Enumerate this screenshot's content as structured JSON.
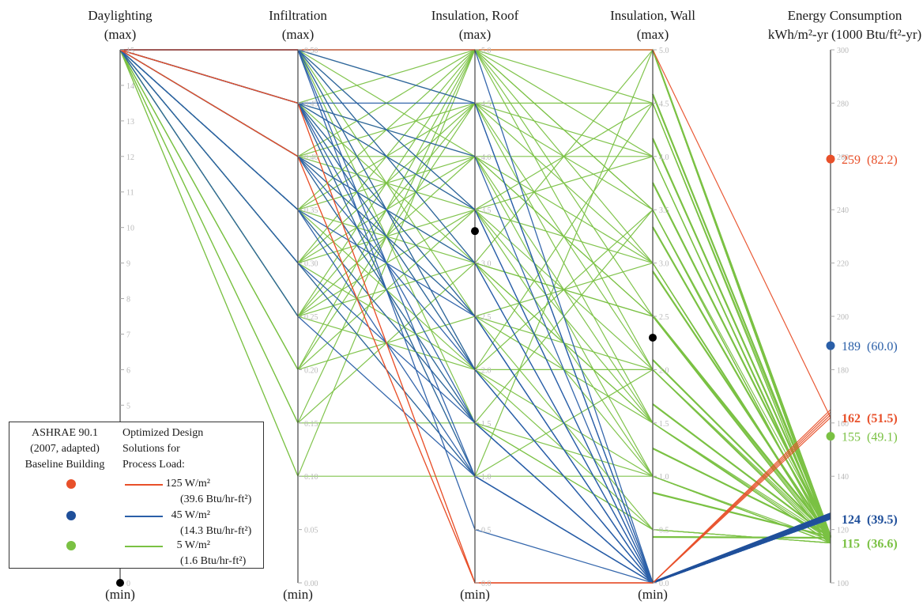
{
  "chart_data": {
    "type": "parallel-coordinates",
    "axes": [
      {
        "title": [
          "Daylighting",
          "(max)"
        ],
        "min_label": "(min)",
        "range": [
          0,
          15
        ],
        "ticks": [
          "0",
          "1",
          "2",
          "3",
          "4",
          "5",
          "6",
          "7",
          "8",
          "9",
          "10",
          "11",
          "12",
          "13",
          "14",
          "15"
        ]
      },
      {
        "title": [
          "Infiltration",
          "(max)"
        ],
        "min_label": "(min)",
        "range": [
          0,
          0.5
        ],
        "ticks": [
          "0.00",
          "0.05",
          "0.10",
          "0.15",
          "0.20",
          "0.25",
          "0.30",
          "0.35",
          "0.40",
          "0.45",
          "0.50"
        ]
      },
      {
        "title": [
          "Insulation, Roof",
          "(max)"
        ],
        "min_label": "(min)",
        "range": [
          0,
          5
        ],
        "ticks": [
          "0.0",
          "0.5",
          "1.0",
          "1.5",
          "2.0",
          "2.5",
          "3.0",
          "3.5",
          "4.0",
          "4.5",
          "5.0"
        ]
      },
      {
        "title": [
          "Insulation, Wall",
          "(max)"
        ],
        "min_label": "(min)",
        "range": [
          0,
          5
        ],
        "ticks": [
          "0.0",
          "0.5",
          "1.0",
          "1.5",
          "2.0",
          "2.5",
          "3.0",
          "3.5",
          "4.0",
          "4.5",
          "5.0"
        ]
      },
      {
        "title": [
          "Energy Consumption",
          "kWh/m²-yr (1000 Btu/ft²-yr)"
        ],
        "range": [
          100,
          300
        ],
        "ticks": [
          "100",
          "120",
          "140",
          "160",
          "180",
          "200",
          "220",
          "240",
          "260",
          "280",
          "300"
        ]
      }
    ],
    "baseline": {
      "values": [
        0,
        null,
        3.3,
        2.3,
        null
      ]
    },
    "energy_markers": [
      {
        "value": 259,
        "label": "259",
        "paren": "(82.2)",
        "color": "#e8502a",
        "dot": true,
        "bold": false
      },
      {
        "value": 189,
        "label": "189",
        "paren": "(60.0)",
        "color": "#2a5fa8",
        "dot": true,
        "bold": false
      },
      {
        "value": 162,
        "label": "162",
        "paren": "(51.5)",
        "color": "#e8502a",
        "dot": false,
        "bold": true
      },
      {
        "value": 155,
        "label": "155",
        "paren": "(49.1)",
        "color": "#7ac143",
        "dot": true,
        "bold": false
      },
      {
        "value": 124,
        "label": "124",
        "paren": "(39.5)",
        "color": "#1f4f9a",
        "dot": false,
        "bold": true
      },
      {
        "value": 115,
        "label": "115",
        "paren": "(36.6)",
        "color": "#7ac143",
        "dot": false,
        "bold": true
      }
    ],
    "series": [
      {
        "name": "125 W/m²",
        "color": "#e8502a",
        "polylines": [
          [
            15,
            0.5,
            5.0,
            5.0,
            162
          ],
          [
            15,
            0.45,
            0.0,
            0.0,
            162
          ],
          [
            15,
            0.4,
            0.0,
            0.0,
            163
          ],
          [
            15,
            0.4,
            0.0,
            0.0,
            164
          ],
          [
            15,
            0.45,
            0.0,
            0.0,
            165
          ]
        ]
      },
      {
        "name": "45 W/m²",
        "color": "#2a5fa8",
        "polylines": [
          [
            15,
            0.5,
            5.0,
            0.0,
            124
          ],
          [
            15,
            0.5,
            4.5,
            0.0,
            124
          ],
          [
            15,
            0.5,
            3.0,
            0.0,
            124
          ],
          [
            15,
            0.5,
            2.0,
            0.0,
            124
          ],
          [
            15,
            0.5,
            1.0,
            0.0,
            124
          ],
          [
            15,
            0.5,
            0.5,
            0.0,
            124
          ],
          [
            15,
            0.45,
            4.5,
            0.0,
            124
          ],
          [
            15,
            0.45,
            3.5,
            0.0,
            124
          ],
          [
            15,
            0.45,
            2.5,
            0.0,
            124
          ],
          [
            15,
            0.45,
            1.5,
            0.0,
            124
          ],
          [
            15,
            0.45,
            1.0,
            0.0,
            124
          ],
          [
            15,
            0.4,
            3.0,
            0.0,
            124
          ],
          [
            15,
            0.4,
            2.0,
            0.0,
            124
          ],
          [
            15,
            0.4,
            1.5,
            0.0,
            124
          ],
          [
            15,
            0.35,
            2.5,
            0.0,
            124
          ],
          [
            15,
            0.35,
            1.0,
            0.0,
            124
          ],
          [
            15,
            0.3,
            1.5,
            0.0,
            124
          ],
          [
            15,
            0.3,
            1.0,
            0.0,
            124
          ],
          [
            15,
            0.25,
            1.0,
            0.0,
            124
          ],
          [
            15,
            0.45,
            4.0,
            0.0,
            125
          ],
          [
            15,
            0.5,
            3.5,
            0.0,
            125
          ],
          [
            15,
            0.4,
            2.5,
            0.0,
            125
          ],
          [
            15,
            0.35,
            1.5,
            0.0,
            125
          ],
          [
            15,
            0.45,
            2.0,
            0.0,
            126
          ]
        ]
      },
      {
        "name": "5 W/m²",
        "color": "#7ac143",
        "polylines": [
          [
            15,
            0.5,
            5.0,
            5.0,
            115
          ],
          [
            15,
            0.5,
            4.5,
            4.5,
            115
          ],
          [
            15,
            0.5,
            4.0,
            4.0,
            115
          ],
          [
            15,
            0.5,
            3.5,
            3.0,
            115
          ],
          [
            15,
            0.5,
            2.5,
            2.0,
            115
          ],
          [
            15,
            0.45,
            5.0,
            3.5,
            115
          ],
          [
            15,
            0.45,
            4.0,
            2.5,
            115
          ],
          [
            15,
            0.45,
            3.0,
            1.5,
            115
          ],
          [
            15,
            0.45,
            2.0,
            1.0,
            115
          ],
          [
            15,
            0.4,
            5.0,
            4.0,
            115
          ],
          [
            15,
            0.4,
            4.5,
            3.0,
            115
          ],
          [
            15,
            0.4,
            3.5,
            2.0,
            115
          ],
          [
            15,
            0.4,
            2.5,
            0.5,
            115
          ],
          [
            15,
            0.35,
            5.0,
            5.0,
            115
          ],
          [
            15,
            0.35,
            4.0,
            1.5,
            115
          ],
          [
            15,
            0.35,
            3.0,
            2.5,
            115
          ],
          [
            15,
            0.35,
            1.5,
            1.0,
            115
          ],
          [
            15,
            0.3,
            4.5,
            3.5,
            115
          ],
          [
            15,
            0.3,
            3.5,
            1.5,
            115
          ],
          [
            15,
            0.3,
            2.0,
            2.0,
            115
          ],
          [
            15,
            0.25,
            5.0,
            4.5,
            115
          ],
          [
            15,
            0.25,
            4.0,
            3.0,
            115
          ],
          [
            15,
            0.25,
            3.0,
            1.0,
            115
          ],
          [
            15,
            0.2,
            4.5,
            4.0,
            115
          ],
          [
            15,
            0.2,
            2.5,
            1.5,
            115
          ],
          [
            15,
            0.15,
            5.0,
            2.5,
            115
          ],
          [
            15,
            0.15,
            1.5,
            0.5,
            115
          ],
          [
            15,
            0.1,
            5.0,
            3.5,
            115
          ],
          [
            15,
            0.1,
            1.0,
            1.0,
            115
          ],
          [
            15,
            0.5,
            1.5,
            0.5,
            115
          ],
          [
            15,
            0.45,
            1.0,
            2.0,
            115
          ],
          [
            15,
            0.4,
            1.5,
            3.5,
            115
          ],
          [
            15,
            0.35,
            2.0,
            4.5,
            115
          ],
          [
            15,
            0.3,
            1.0,
            5.0,
            115
          ],
          [
            15,
            0.25,
            2.0,
            0.5,
            115
          ],
          [
            15,
            0.2,
            3.5,
            1.0,
            115
          ],
          [
            15,
            0.3,
            4.0,
            1.0,
            116
          ],
          [
            15,
            0.5,
            3.0,
            2.5,
            116
          ],
          [
            15,
            0.45,
            2.5,
            3.0,
            116
          ],
          [
            15,
            0.4,
            3.0,
            5.0,
            116
          ],
          [
            15,
            0.35,
            4.5,
            2.0,
            116
          ],
          [
            15,
            0.25,
            3.5,
            4.0,
            116
          ],
          [
            15,
            0.2,
            5.0,
            3.0,
            116
          ],
          [
            15,
            0.15,
            3.0,
            1.5,
            116
          ],
          [
            15,
            0.45,
            3.5,
            4.5,
            117
          ],
          [
            15,
            0.4,
            4.0,
            2.5,
            117
          ],
          [
            15,
            0.3,
            5.0,
            2.0,
            117
          ],
          [
            15,
            0.25,
            4.5,
            1.5,
            117
          ],
          [
            15,
            0.5,
            2.0,
            3.5,
            118
          ]
        ]
      }
    ]
  },
  "legend": {
    "col1_title": [
      "ASHRAE 90.1",
      "(2007, adapted)",
      "Baseline Building"
    ],
    "col2_title": [
      "Optimized Design",
      "Solutions for",
      "Process Load:"
    ],
    "items": [
      {
        "dot_color": "#e8502a",
        "line_color": "#e8502a",
        "value": "125 W/m²",
        "sub": "(39.6 Btu/hr-ft²)"
      },
      {
        "dot_color": "#1f4f9a",
        "line_color": "#2a5fa8",
        "value": "45 W/m²",
        "sub": "(14.3 Btu/hr-ft²)"
      },
      {
        "dot_color": "#7ac143",
        "line_color": "#7ac143",
        "value": "5 W/m²",
        "sub": "(1.6 Btu/hr-ft²)"
      }
    ]
  }
}
